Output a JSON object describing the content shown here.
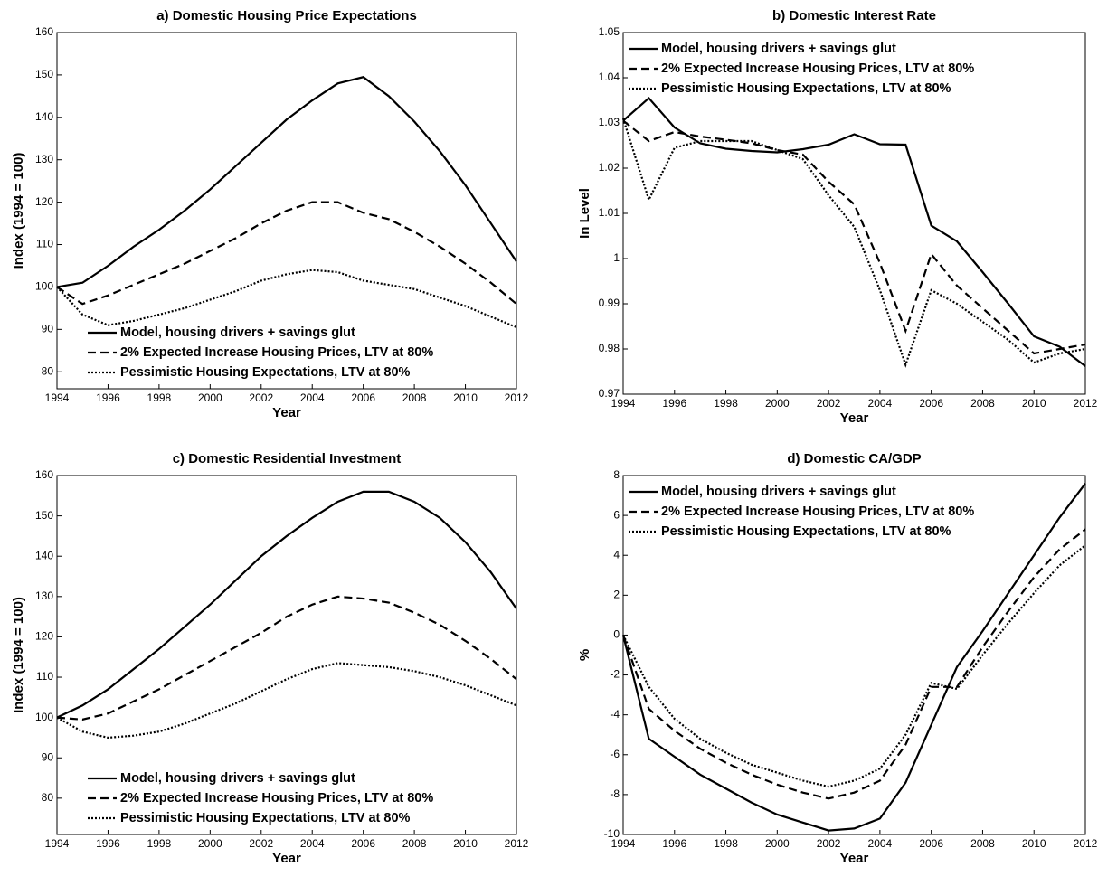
{
  "chart_data": [
    {
      "type": "line",
      "title": "a) Domestic Housing Price Expectations",
      "xlabel": "Year",
      "ylabel": "Index (1994 = 100)",
      "x": [
        1994,
        1995,
        1996,
        1997,
        1998,
        1999,
        2000,
        2001,
        2002,
        2003,
        2004,
        2005,
        2006,
        2007,
        2008,
        2009,
        2010,
        2011,
        2012
      ],
      "xlim": [
        1994,
        2012
      ],
      "xticks": [
        1994,
        1996,
        1998,
        2000,
        2002,
        2004,
        2006,
        2008,
        2010,
        2012
      ],
      "ylim": [
        76,
        160
      ],
      "yticks": [
        80,
        90,
        100,
        110,
        120,
        130,
        140,
        150,
        160
      ],
      "legend": "lower left",
      "series": [
        {
          "name": "Model, housing drivers + savings glut",
          "color": "#000000",
          "dash": "solid",
          "values": [
            100,
            101,
            105,
            109.5,
            113.5,
            118,
            123,
            128.5,
            134,
            139.5,
            144,
            148,
            149.5,
            145,
            139,
            132,
            124,
            115,
            106
          ]
        },
        {
          "name": "2%  Expected Increase Housing Prices, LTV at 80%",
          "color": "#000000",
          "dash": "dashed",
          "values": [
            100,
            96,
            98,
            100.5,
            103,
            105.5,
            108.5,
            111.5,
            115,
            118,
            120,
            120,
            117.5,
            116,
            113,
            109.5,
            105.5,
            101,
            96
          ]
        },
        {
          "name": "Pessimistic Housing Expectations, LTV at 80%",
          "color": "#000000",
          "dash": "dotted",
          "values": [
            100,
            93.5,
            91,
            92,
            93.5,
            95,
            97,
            99,
            101.5,
            103,
            104,
            103.5,
            101.5,
            100.5,
            99.5,
            97.5,
            95.5,
            93,
            90.5
          ]
        }
      ]
    },
    {
      "type": "line",
      "title": "b) Domestic Interest Rate",
      "xlabel": "Year",
      "ylabel": "In Level",
      "x": [
        1994,
        1995,
        1996,
        1997,
        1998,
        1999,
        2000,
        2001,
        2002,
        2003,
        2004,
        2005,
        2006,
        2007,
        2008,
        2009,
        2010,
        2011,
        2012
      ],
      "xlim": [
        1994,
        2012
      ],
      "xticks": [
        1994,
        1996,
        1998,
        2000,
        2002,
        2004,
        2006,
        2008,
        2010,
        2012
      ],
      "ylim": [
        0.97,
        1.05
      ],
      "yticks": [
        0.97,
        0.98,
        0.99,
        1,
        1.01,
        1.02,
        1.03,
        1.04,
        1.05
      ],
      "legend": "upper left",
      "series": [
        {
          "name": "Model, housing drivers + savings glut",
          "color": "#000000",
          "dash": "solid",
          "values": [
            1.0305,
            1.0355,
            1.029,
            1.0255,
            1.0243,
            1.0238,
            1.0235,
            1.0242,
            1.0252,
            1.0275,
            1.0253,
            1.0252,
            1.0073,
            1.0038,
            0.997,
            0.99,
            0.9828,
            0.9805,
            0.9762
          ]
        },
        {
          "name": "2%  Expected Increase Housing Prices, LTV at 80%",
          "color": "#000000",
          "dash": "dashed",
          "values": [
            1.0305,
            1.026,
            1.028,
            1.027,
            1.0263,
            1.0255,
            1.024,
            1.023,
            1.017,
            1.012,
            0.999,
            0.984,
            1.001,
            0.994,
            0.989,
            0.984,
            0.979,
            0.98,
            0.981
          ]
        },
        {
          "name": "Pessimistic Housing Expectations, LTV at 80%",
          "color": "#000000",
          "dash": "dotted",
          "values": [
            1.031,
            1.013,
            1.0245,
            1.026,
            1.026,
            1.026,
            1.024,
            1.022,
            1.014,
            1.007,
            0.993,
            0.9765,
            0.993,
            0.99,
            0.986,
            0.982,
            0.977,
            0.979,
            0.98
          ]
        }
      ]
    },
    {
      "type": "line",
      "title": "c) Domestic Residential Investment",
      "xlabel": "Year",
      "ylabel": "Index (1994 = 100)",
      "x": [
        1994,
        1995,
        1996,
        1997,
        1998,
        1999,
        2000,
        2001,
        2002,
        2003,
        2004,
        2005,
        2006,
        2007,
        2008,
        2009,
        2010,
        2011,
        2012
      ],
      "xlim": [
        1994,
        2012
      ],
      "xticks": [
        1994,
        1996,
        1998,
        2000,
        2002,
        2004,
        2006,
        2008,
        2010,
        2012
      ],
      "ylim": [
        71,
        160
      ],
      "yticks": [
        80,
        90,
        100,
        110,
        120,
        130,
        140,
        150,
        160
      ],
      "legend": "lower left",
      "series": [
        {
          "name": "Model, housing drivers + savings glut",
          "color": "#000000",
          "dash": "solid",
          "values": [
            100,
            103,
            107,
            112,
            117,
            122.5,
            128,
            134,
            140,
            145,
            149.5,
            153.5,
            156,
            156,
            153.5,
            149.5,
            143.5,
            136,
            127
          ]
        },
        {
          "name": "2%  Expected Increase Housing Prices, LTV at 80%",
          "color": "#000000",
          "dash": "dashed",
          "values": [
            100,
            99.5,
            101,
            104,
            107,
            110.5,
            114,
            117.5,
            121,
            125,
            128,
            130,
            129.5,
            128.5,
            126,
            123,
            119,
            114.5,
            109.5
          ]
        },
        {
          "name": "Pessimistic Housing Expectations, LTV at 80%",
          "color": "#000000",
          "dash": "dotted",
          "values": [
            100,
            96.5,
            95,
            95.5,
            96.5,
            98.5,
            101,
            103.5,
            106.5,
            109.5,
            112,
            113.5,
            113,
            112.5,
            111.5,
            110,
            108,
            105.5,
            103
          ]
        }
      ]
    },
    {
      "type": "line",
      "title": "d) Domestic CA/GDP",
      "xlabel": "Year",
      "ylabel": "%",
      "x": [
        1994,
        1995,
        1996,
        1997,
        1998,
        1999,
        2000,
        2001,
        2002,
        2003,
        2004,
        2005,
        2006,
        2007,
        2008,
        2009,
        2010,
        2011,
        2012
      ],
      "xlim": [
        1994,
        2012
      ],
      "xticks": [
        1994,
        1996,
        1998,
        2000,
        2002,
        2004,
        2006,
        2008,
        2010,
        2012
      ],
      "ylim": [
        -10,
        8
      ],
      "yticks": [
        -10,
        -8,
        -6,
        -4,
        -2,
        0,
        2,
        4,
        6,
        8
      ],
      "legend": "upper left",
      "series": [
        {
          "name": "Model, housing drivers + savings glut",
          "color": "#000000",
          "dash": "solid",
          "values": [
            0,
            -5.2,
            -6.1,
            -7,
            -7.7,
            -8.4,
            -9,
            -9.4,
            -9.8,
            -9.7,
            -9.2,
            -7.4,
            -4.5,
            -1.6,
            0.2,
            2.1,
            4,
            5.9,
            7.6
          ]
        },
        {
          "name": "2%  Expected Increase Housing Prices, LTV at 80%",
          "color": "#000000",
          "dash": "dashed",
          "values": [
            0,
            -3.7,
            -4.8,
            -5.7,
            -6.4,
            -7,
            -7.5,
            -7.9,
            -8.2,
            -7.9,
            -7.3,
            -5.5,
            -2.6,
            -2.6,
            -0.6,
            1.2,
            2.9,
            4.3,
            5.3
          ]
        },
        {
          "name": "Pessimistic Housing Expectations, LTV at 80%",
          "color": "#000000",
          "dash": "dotted",
          "values": [
            0,
            -2.6,
            -4.2,
            -5.2,
            -5.9,
            -6.5,
            -6.9,
            -7.3,
            -7.6,
            -7.3,
            -6.7,
            -5,
            -2.4,
            -2.7,
            -1,
            0.6,
            2.1,
            3.5,
            4.5
          ]
        }
      ]
    }
  ]
}
